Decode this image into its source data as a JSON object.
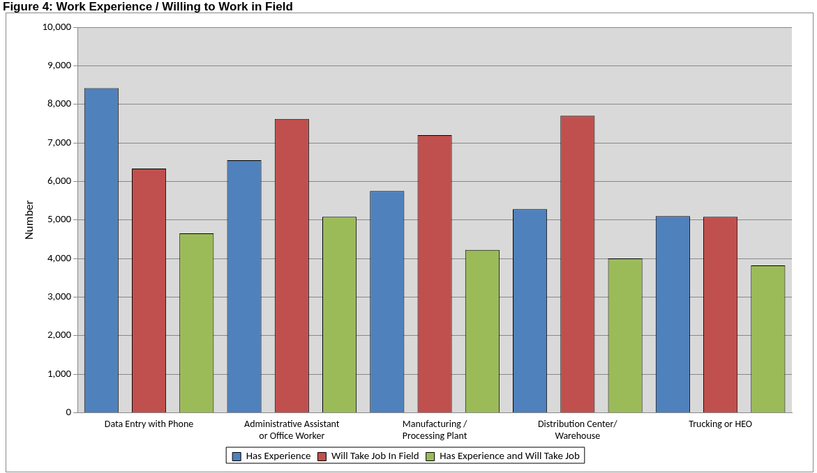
{
  "chart_data": {
    "type": "bar",
    "title": "Figure 4: Work Experience / Willing to Work in Field",
    "ylabel": "Number",
    "categories": [
      "Data Entry with Phone",
      "Administrative Assistant or Office Worker",
      "Manufacturing / Processing Plant",
      "Distribution Center/ Warehouse",
      "Trucking or HEO"
    ],
    "series": [
      {
        "name": "Has Experience",
        "color": "#4f81bd",
        "values": [
          8420,
          6550,
          5750,
          5280,
          5100
        ]
      },
      {
        "name": "Will Take Job In Field",
        "color": "#c0504d",
        "values": [
          6330,
          7620,
          7200,
          7700,
          5080
        ]
      },
      {
        "name": "Has Experience and Will Take Job",
        "color": "#9bbb59",
        "values": [
          4650,
          5080,
          4220,
          4000,
          3820
        ]
      }
    ],
    "ylim": [
      0,
      10000
    ],
    "yticks": [
      {
        "value": 0,
        "label": "0"
      },
      {
        "value": 1000,
        "label": "1,000"
      },
      {
        "value": 2000,
        "label": "2,000"
      },
      {
        "value": 3000,
        "label": "3,000"
      },
      {
        "value": 4000,
        "label": "4,000"
      },
      {
        "value": 5000,
        "label": "5,000"
      },
      {
        "value": 6000,
        "label": "6,000"
      },
      {
        "value": 7000,
        "label": "7,000"
      },
      {
        "value": 8000,
        "label": "8,000"
      },
      {
        "value": 9000,
        "label": "9,000"
      },
      {
        "value": 10000,
        "label": "10,000"
      }
    ],
    "grid": "y",
    "legend": "bottom"
  }
}
